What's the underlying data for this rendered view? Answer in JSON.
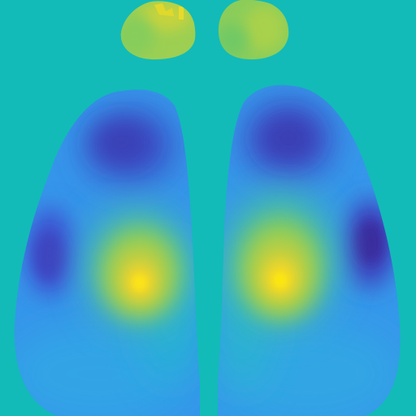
{
  "image": {
    "kind": "false-color brain activity heatmap (dorsal view)",
    "colormap": "parula",
    "colors": {
      "background": "#12bbb8",
      "low": "#3d2b9e",
      "mid_low": "#2f7ff0",
      "mid": "#1fb0cc",
      "mid_high": "#7cca5c",
      "high": "#f6d72a",
      "peak": "#fbe60f"
    }
  }
}
